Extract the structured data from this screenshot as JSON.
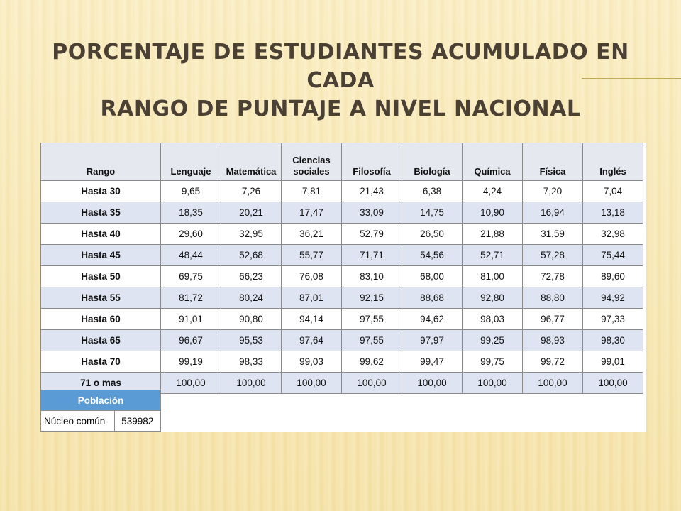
{
  "slide": {
    "title_line1": "Porcentaje de estudiantes acumulado en cada",
    "title_line2": "rango de puntaje a nivel nacional"
  },
  "table": {
    "headers": [
      "Rango",
      "Lenguaje",
      "Matemática",
      "Ciencias sociales",
      "Filosofía",
      "Biología",
      "Química",
      "Física",
      "Inglés"
    ],
    "rows": [
      {
        "rango": "Hasta 30",
        "values": [
          "9,65",
          "7,26",
          "7,81",
          "21,43",
          "6,38",
          "4,24",
          "7,20",
          "7,04"
        ]
      },
      {
        "rango": "Hasta 35",
        "values": [
          "18,35",
          "20,21",
          "17,47",
          "33,09",
          "14,75",
          "10,90",
          "16,94",
          "13,18"
        ]
      },
      {
        "rango": "Hasta 40",
        "values": [
          "29,60",
          "32,95",
          "36,21",
          "52,79",
          "26,50",
          "21,88",
          "31,59",
          "32,98"
        ]
      },
      {
        "rango": "Hasta 45",
        "values": [
          "48,44",
          "52,68",
          "55,77",
          "71,71",
          "54,56",
          "52,71",
          "57,28",
          "75,44"
        ]
      },
      {
        "rango": "Hasta 50",
        "values": [
          "69,75",
          "66,23",
          "76,08",
          "83,10",
          "68,00",
          "81,00",
          "72,78",
          "89,60"
        ]
      },
      {
        "rango": "Hasta 55",
        "values": [
          "81,72",
          "80,24",
          "87,01",
          "92,15",
          "88,68",
          "92,80",
          "88,80",
          "94,92"
        ]
      },
      {
        "rango": "Hasta 60",
        "values": [
          "91,01",
          "90,80",
          "94,14",
          "97,55",
          "94,62",
          "98,03",
          "96,77",
          "97,33"
        ]
      },
      {
        "rango": "Hasta 65",
        "values": [
          "96,67",
          "95,53",
          "97,64",
          "97,55",
          "97,97",
          "99,25",
          "98,93",
          "98,30"
        ]
      },
      {
        "rango": "Hasta 70",
        "values": [
          "99,19",
          "98,33",
          "99,03",
          "99,62",
          "99,47",
          "99,75",
          "99,72",
          "99,01"
        ]
      },
      {
        "rango": "71 o mas",
        "values": [
          "100,00",
          "100,00",
          "100,00",
          "100,00",
          "100,00",
          "100,00",
          "100,00",
          "100,00"
        ]
      }
    ]
  },
  "poblacion": {
    "header": "Población",
    "label": "Núcleo común",
    "value": "539982"
  },
  "colors": {
    "title": "#4a4034",
    "header_fill": "#e6e8f0",
    "alt_row_fill": "#dfe4f2",
    "poblacion_header_fill": "#5b9bd5"
  }
}
